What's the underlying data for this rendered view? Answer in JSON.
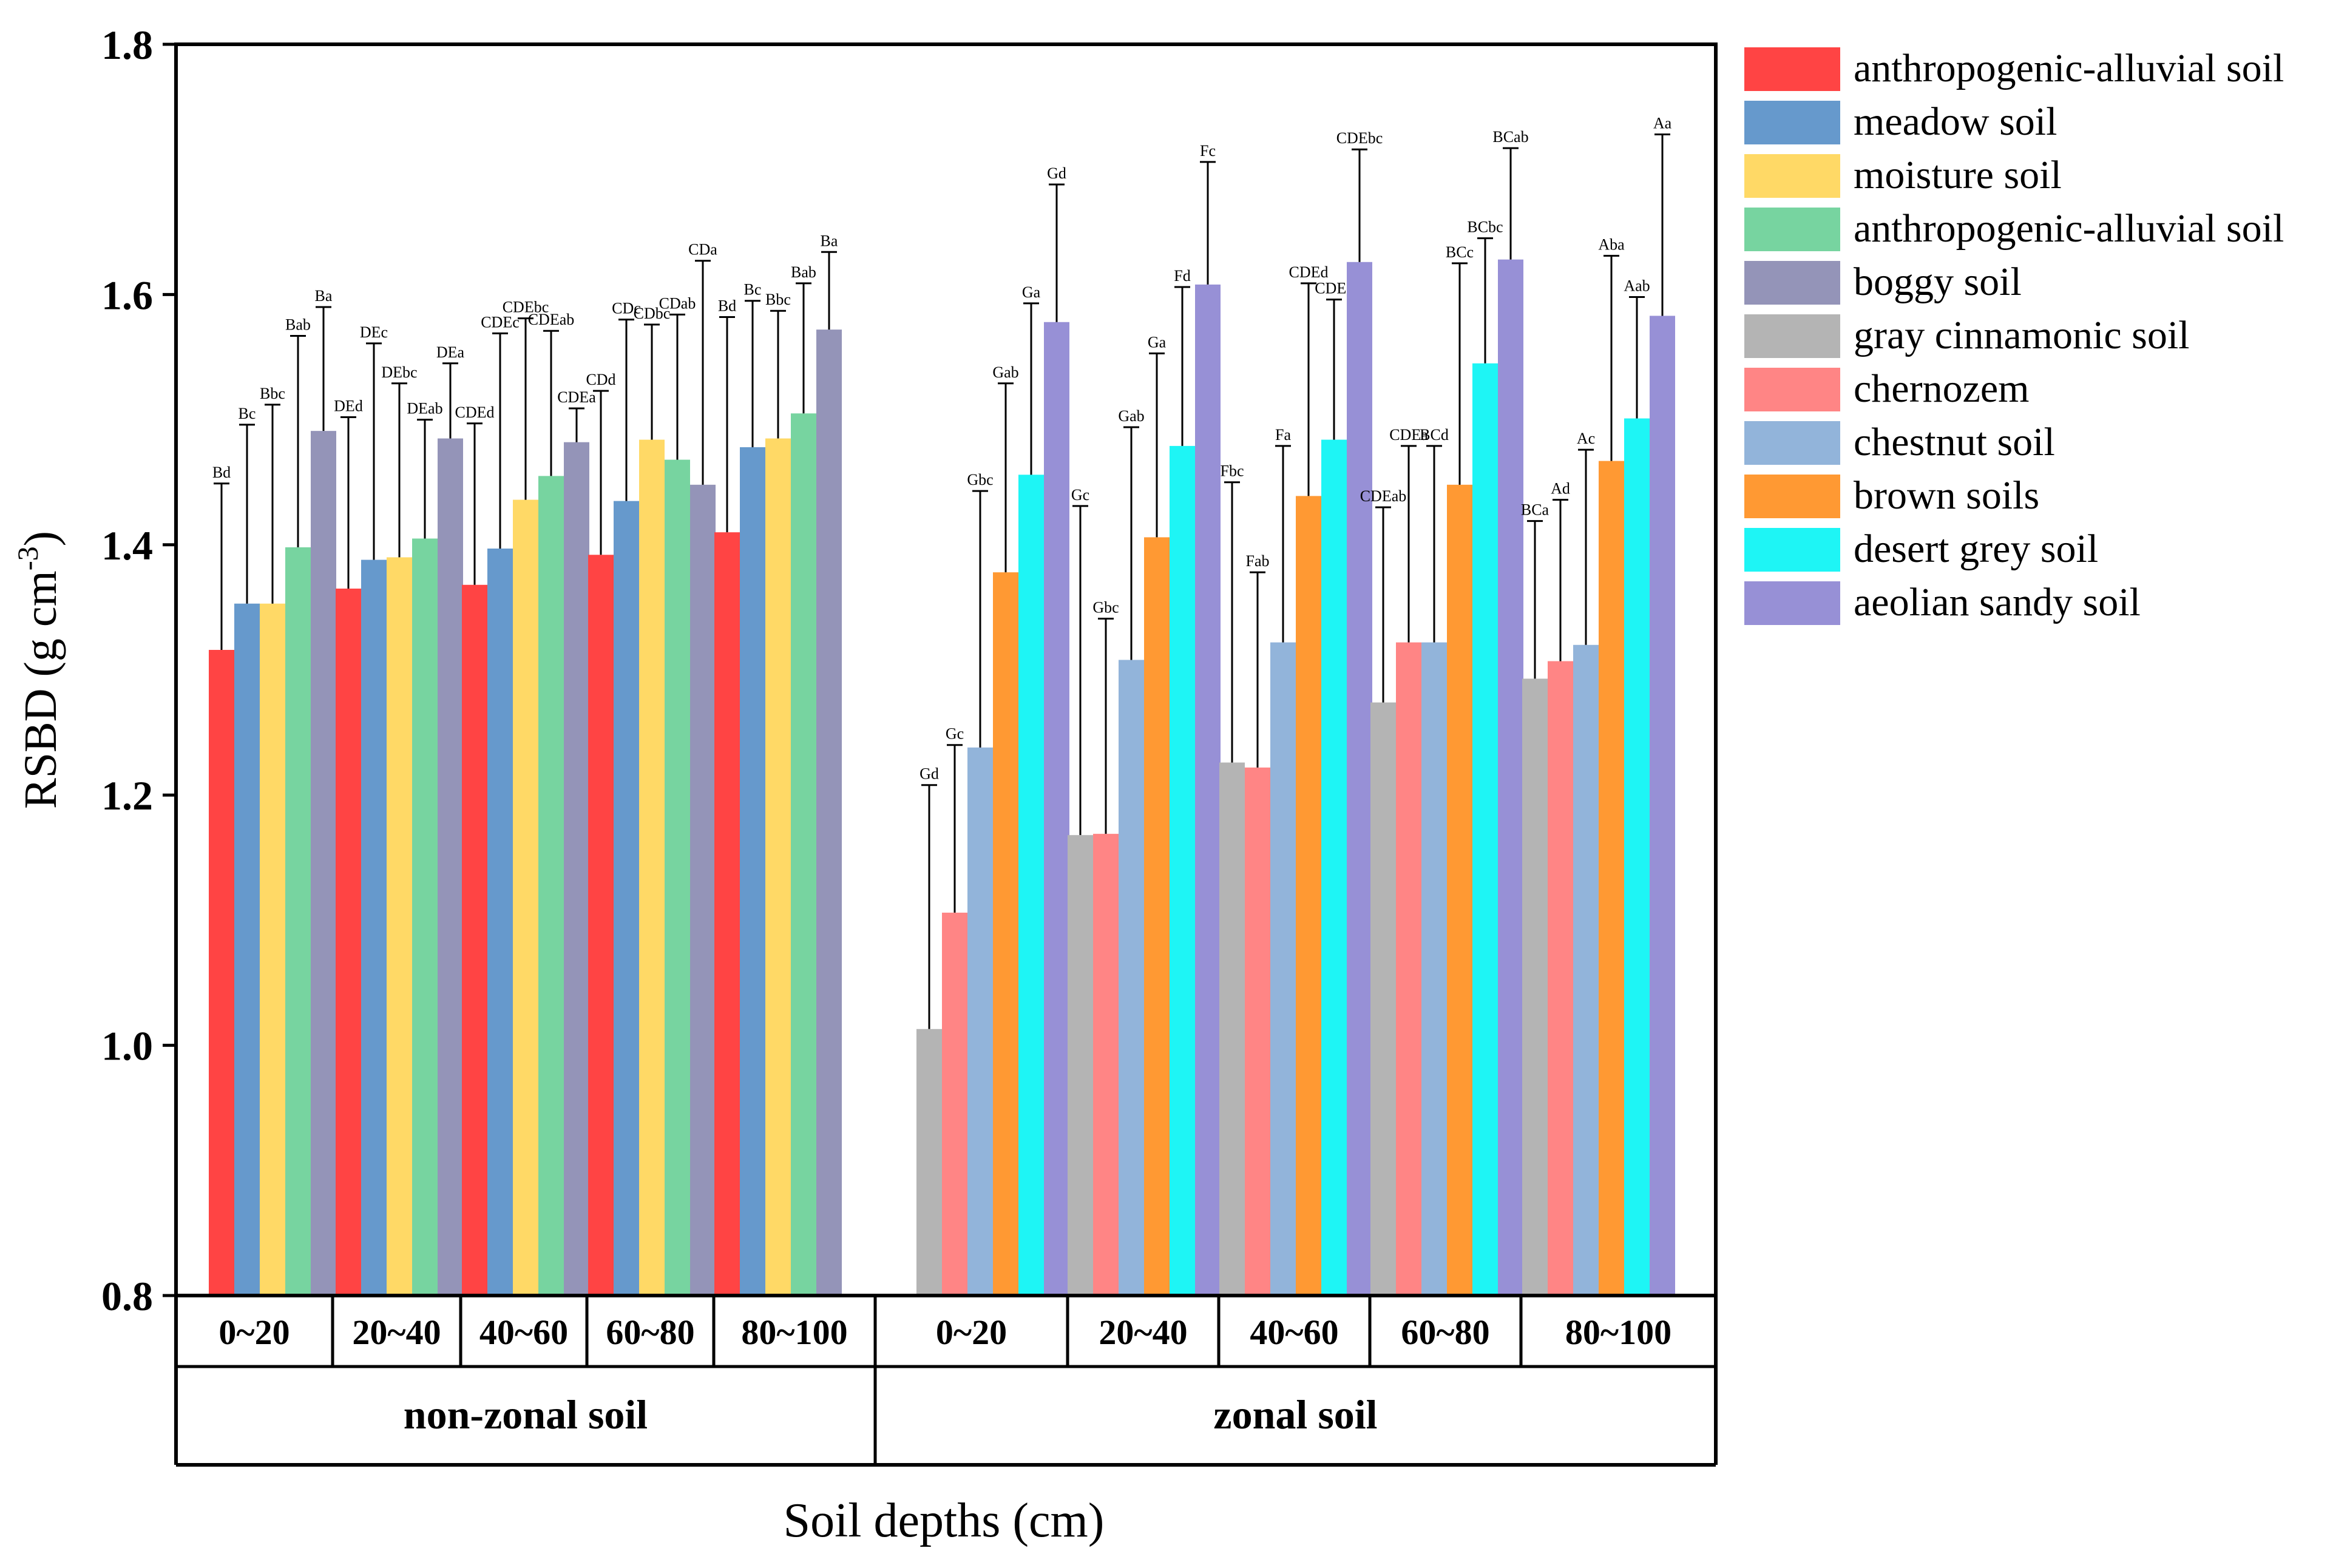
{
  "chart_data": {
    "type": "bar",
    "title": "",
    "ylabel": "RSBD (g cm",
    "ylabel_sup": "-3",
    "ylabel_close": ")",
    "xlabel": "Soil depths (cm)",
    "ylim": [
      0.8,
      1.8
    ],
    "yticks": [
      "0.8",
      "1.0",
      "1.2",
      "1.4",
      "1.6",
      "1.8"
    ],
    "legend": [
      {
        "name": "anthropogenic-alluvial soil",
        "color": "#FF4444"
      },
      {
        "name": "meadow soil",
        "color": "#6699CC"
      },
      {
        "name": "moisture soil",
        "color": "#FFD966"
      },
      {
        "name": "anthropogenic-alluvial soil",
        "color": "#77D4A0"
      },
      {
        "name": "boggy soil",
        "color": "#9494B8"
      },
      {
        "name": "gray cinnamonic soil",
        "color": "#B4B4B4"
      },
      {
        "name": "chernozem",
        "color": "#FF8585"
      },
      {
        "name": "chestnut soil",
        "color": "#92B4DA"
      },
      {
        "name": "brown soils",
        "color": "#FF9933"
      },
      {
        "name": "desert grey soil",
        "color": "#1EF5F5"
      },
      {
        "name": "aeolian sandy soil",
        "color": "#9790D6"
      }
    ],
    "groups": [
      {
        "name": "non-zonal soil",
        "series": [
          0,
          1,
          2,
          3,
          4
        ],
        "depths": [
          {
            "label": "0~20",
            "values": [
              1.316,
              1.353,
              1.353,
              1.398,
              1.491
            ],
            "errors": [
              1.449,
              1.496,
              1.512,
              1.567,
              1.59
            ],
            "letters": [
              "Bd",
              "Bc",
              "Bbc",
              "Bab",
              "Ba"
            ]
          },
          {
            "label": "20~40",
            "values": [
              1.365,
              1.388,
              1.39,
              1.405,
              1.485
            ],
            "errors": [
              1.502,
              1.561,
              1.529,
              1.5,
              1.545
            ],
            "letters": [
              "DEd",
              "DEc",
              "DEbc",
              "DEab",
              "DEa"
            ]
          },
          {
            "label": "40~60",
            "values": [
              1.368,
              1.397,
              1.436,
              1.455,
              1.482
            ],
            "errors": [
              1.497,
              1.569,
              1.581,
              1.571,
              1.509
            ],
            "letters": [
              "CDEd",
              "CDEc",
              "CDEbc",
              "CDEab",
              "CDEa"
            ]
          },
          {
            "label": "60~80",
            "values": [
              1.392,
              1.435,
              1.484,
              1.468,
              1.448
            ],
            "errors": [
              1.523,
              1.58,
              1.576,
              1.584,
              1.627
            ],
            "letters": [
              "CDd",
              "CDc",
              "CDbc",
              "CDab",
              "CDa"
            ]
          },
          {
            "label": "80~100",
            "values": [
              1.41,
              1.478,
              1.485,
              1.505,
              1.572
            ],
            "errors": [
              1.582,
              1.595,
              1.587,
              1.609,
              1.634
            ],
            "letters": [
              "Bd",
              "Bc",
              "Bbc",
              "Bab",
              "Ba"
            ]
          }
        ]
      },
      {
        "name": "zonal soil",
        "series": [
          5,
          6,
          7,
          8,
          9,
          10
        ],
        "depths": [
          {
            "label": "0~20",
            "values": [
              1.013,
              1.106,
              1.238,
              1.378,
              1.456,
              1.578
            ],
            "errors": [
              1.208,
              1.24,
              1.443,
              1.529,
              1.593,
              1.688
            ],
            "letters": [
              "Gd",
              "Gc",
              "Gbc",
              "Gab",
              "Ga",
              "Gd"
            ]
          },
          {
            "label": "20~40",
            "values": [
              1.168,
              1.169,
              1.308,
              1.406,
              1.479,
              1.608
            ],
            "errors": [
              1.431,
              1.341,
              1.494,
              1.553,
              1.606,
              1.706
            ],
            "letters": [
              "Gc",
              "Gbc",
              "Gab",
              "Ga",
              "Fd",
              "Fc"
            ]
          },
          {
            "label": "40~60",
            "values": [
              1.226,
              1.222,
              1.322,
              1.439,
              1.484,
              1.626
            ],
            "errors": [
              1.45,
              1.378,
              1.479,
              1.609,
              1.596,
              1.716
            ],
            "letters": [
              "Fbc",
              "Fab",
              "Fa",
              "CDEd",
              "CDEc",
              "CDEbc"
            ]
          },
          {
            "label": "60~80",
            "values": [
              1.274,
              1.322,
              1.322,
              1.448,
              1.545,
              1.628
            ],
            "errors": [
              1.43,
              1.479,
              1.479,
              1.625,
              1.645,
              1.717
            ],
            "letters": [
              "CDEab",
              "CDEa",
              "BCd",
              "BCc",
              "BCbc",
              "BCab"
            ]
          },
          {
            "label": "80~100",
            "values": [
              1.293,
              1.307,
              1.32,
              1.467,
              1.501,
              1.583
            ],
            "errors": [
              1.419,
              1.436,
              1.476,
              1.631,
              1.598,
              1.728
            ],
            "letters": [
              "BCa",
              "Ad",
              "Ac",
              "Aba",
              "Aab",
              "Aa"
            ]
          }
        ]
      }
    ]
  }
}
